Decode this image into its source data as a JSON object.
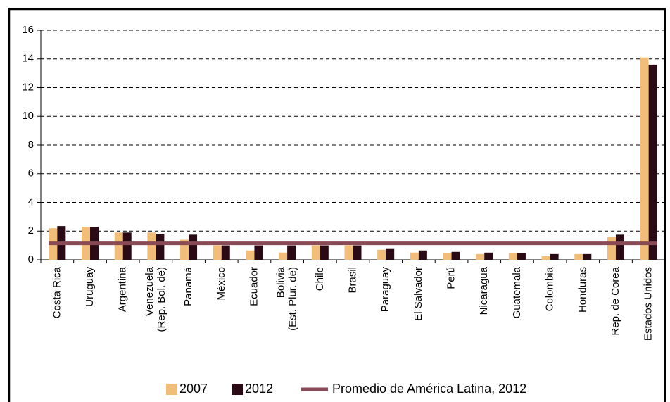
{
  "chart_data": {
    "type": "bar",
    "categories": [
      "Costa Rica",
      "Uruguay",
      "Argentina",
      "Venezuela\n(Rep. Bol. de)",
      "Panamá",
      "México",
      "Ecuador",
      "Bolivia\n(Est. Plur. de)",
      "Chile",
      "Brasil",
      "Paraguay",
      "El Salvador",
      "Perú",
      "Nicaragua",
      "Guatemala",
      "Colombia",
      "Honduras",
      "Rep. de Corea",
      "Estados Unidos"
    ],
    "series": [
      {
        "name": "2007",
        "color": "#f2bd78",
        "values": [
          2.2,
          2.3,
          1.9,
          1.9,
          1.4,
          1.0,
          0.65,
          0.5,
          1.0,
          1.0,
          0.7,
          0.5,
          0.45,
          0.4,
          0.45,
          0.25,
          0.4,
          1.6,
          14.1
        ]
      },
      {
        "name": "2012",
        "color": "#2a0a14",
        "values": [
          2.35,
          2.3,
          1.9,
          1.8,
          1.75,
          1.0,
          1.0,
          1.0,
          1.0,
          1.0,
          0.8,
          0.65,
          0.55,
          0.5,
          0.45,
          0.4,
          0.4,
          1.75,
          13.6
        ]
      }
    ],
    "average": {
      "name": "Promedio de América Latina, 2012",
      "value": 1.15,
      "color": "#8a4a55"
    },
    "ylim": [
      0,
      16
    ],
    "yticks": [
      0,
      2,
      4,
      6,
      8,
      10,
      12,
      14,
      16
    ],
    "grid": true
  }
}
